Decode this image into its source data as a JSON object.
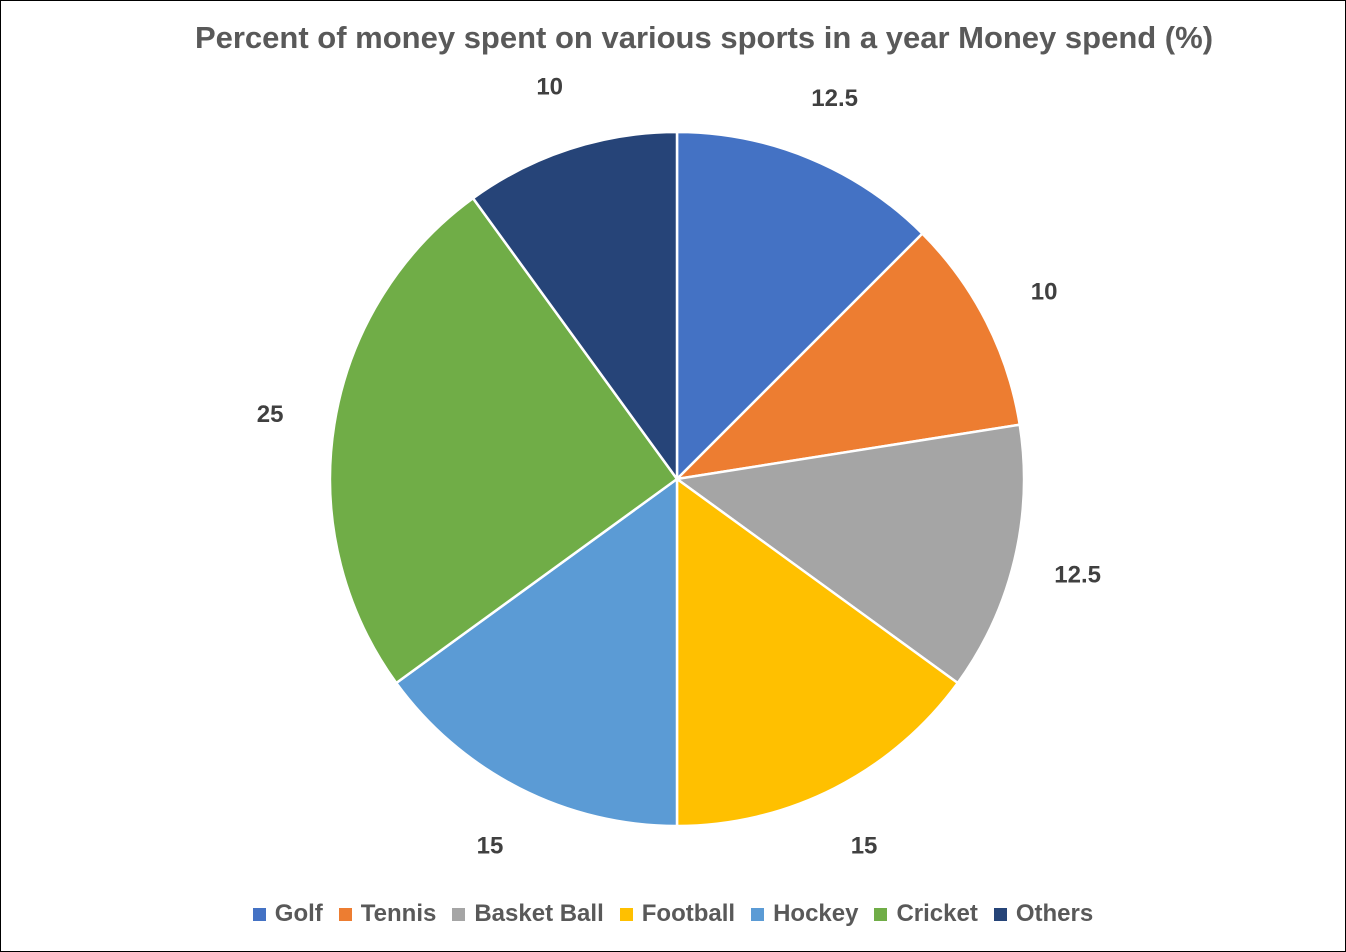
{
  "chart_data": {
    "type": "pie",
    "title": "Percent of money spent on various sports in a year Money spend (%)",
    "categories": [
      "Golf",
      "Tennis",
      "Basket Ball",
      "Football",
      "Hockey",
      "Cricket",
      "Others"
    ],
    "values": [
      12.5,
      10,
      12.5,
      15,
      15,
      25,
      10
    ],
    "data_labels": [
      "12.5",
      "10",
      "12.5",
      "15",
      "15",
      "25",
      "10"
    ],
    "colors": [
      "#4472C4",
      "#ED7D31",
      "#A5A5A5",
      "#FFC000",
      "#5B9BD5",
      "#70AD47",
      "#264478"
    ],
    "start_angle": "12 o'clock",
    "direction": "clockwise",
    "legend_position": "bottom"
  }
}
